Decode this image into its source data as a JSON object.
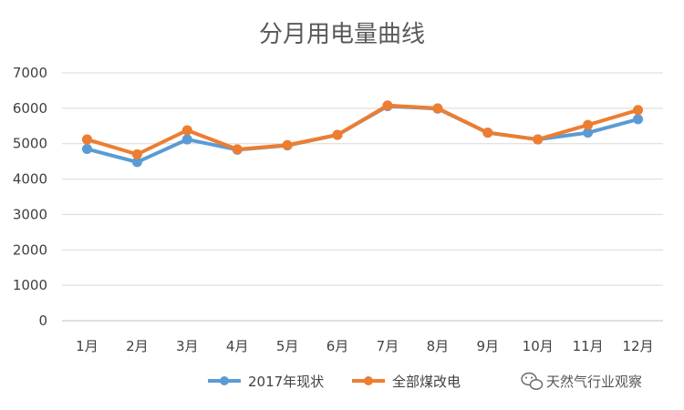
{
  "chart_data": {
    "type": "line",
    "title": "分月用电量曲线",
    "categories": [
      "1月",
      "2月",
      "3月",
      "4月",
      "5月",
      "6月",
      "7月",
      "8月",
      "9月",
      "10月",
      "11月",
      "12月"
    ],
    "series": [
      {
        "name": "2017年现状",
        "color": "#5B9BD5",
        "values": [
          4850,
          4480,
          5120,
          4830,
          4950,
          5250,
          6060,
          5990,
          5310,
          5120,
          5310,
          5690
        ]
      },
      {
        "name": "全部煤改电",
        "color": "#ED7D31",
        "values": [
          5120,
          4700,
          5380,
          4840,
          4960,
          5250,
          6080,
          6000,
          5310,
          5120,
          5530,
          5950
        ]
      }
    ],
    "ylim": [
      0,
      7000
    ],
    "yticks": [
      "0",
      "1000",
      "2000",
      "3000",
      "4000",
      "5000",
      "6000",
      "7000"
    ],
    "grid": true,
    "legend_position": "bottom"
  },
  "watermark": {
    "text": "天然气行业观察",
    "icon": "wechat-icon"
  }
}
